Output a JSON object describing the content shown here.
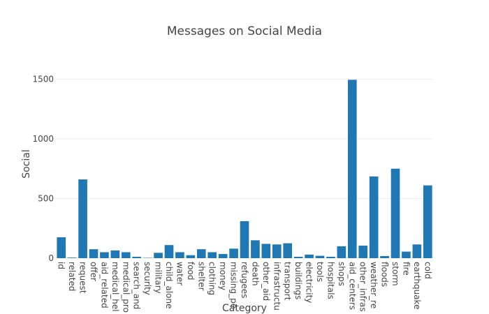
{
  "chart_data": {
    "type": "bar",
    "title": "Messages on Social Media",
    "xlabel": "Category",
    "ylabel": "Social",
    "categories": [
      "id",
      "related",
      "request",
      "offer",
      "aid_related",
      "medical_help",
      "medical_products",
      "search_and_rescue",
      "security",
      "military",
      "child_alone",
      "water",
      "food",
      "shelter",
      "clothing",
      "money",
      "missing_people",
      "refugees",
      "death",
      "other_aid",
      "infrastructure_related",
      "transport",
      "buildings",
      "electricity",
      "tools",
      "hospitals",
      "shops",
      "aid_centers",
      "other_infrastructure",
      "weather_related",
      "floods",
      "storm",
      "fire",
      "earthquake",
      "cold"
    ],
    "tick_labels": [
      "id",
      "related",
      "request",
      "offer",
      "aid_related",
      "medical_hel",
      "medical_pro",
      "search_and",
      "security",
      "military",
      "child_alone",
      "water",
      "food",
      "shelter",
      "clothing",
      "money",
      "missing_pe",
      "refugees",
      "death",
      "other_aid",
      "infrastructu",
      "transport",
      "buildings",
      "electricity",
      "tools",
      "hospitals",
      "shops",
      "aid_centers",
      "other_infras",
      "weather_re",
      "floods",
      "storm",
      "fire",
      "earthquake",
      "cold"
    ],
    "values": [
      175,
      5,
      660,
      75,
      50,
      65,
      50,
      12,
      3,
      45,
      110,
      50,
      25,
      75,
      50,
      35,
      80,
      310,
      150,
      120,
      115,
      125,
      12,
      30,
      20,
      12,
      100,
      1495,
      105,
      685,
      18,
      750,
      55,
      115,
      610
    ],
    "ylim": [
      0,
      1650
    ],
    "yticks": [
      0,
      500,
      1000,
      1500
    ],
    "grid": true,
    "bar_color": "#1f77b4"
  }
}
